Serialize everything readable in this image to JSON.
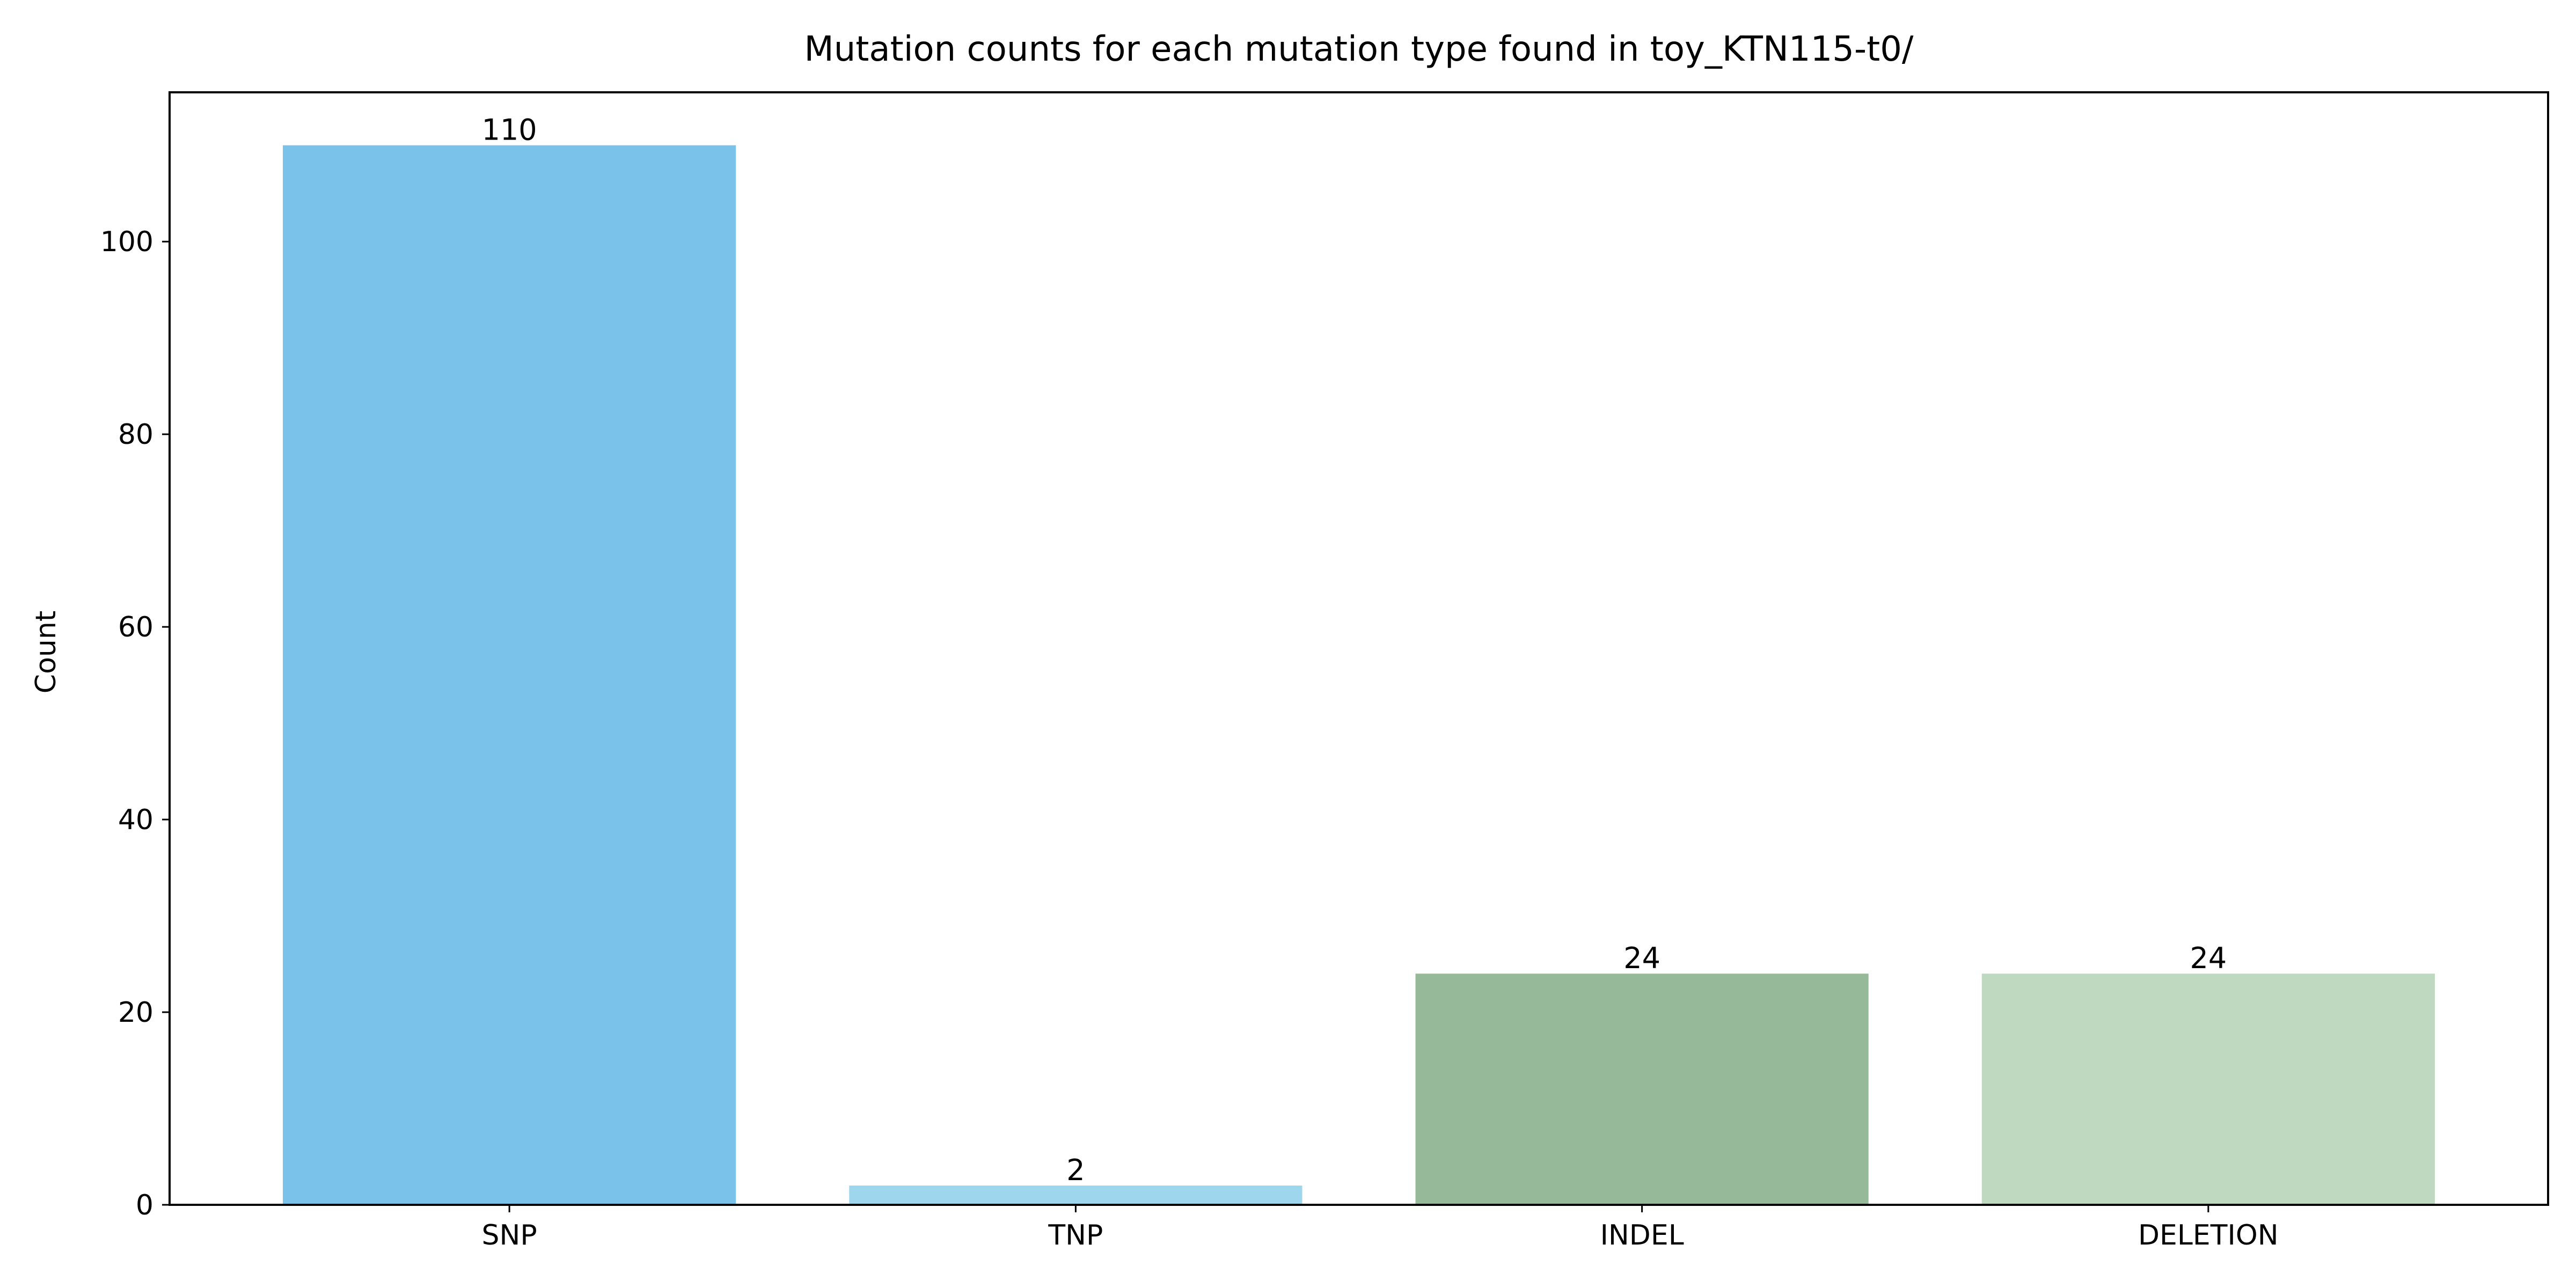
{
  "chart_data": {
    "type": "bar",
    "title": "Mutation counts for each mutation type found in toy_KTN115-t0/",
    "xlabel": "",
    "ylabel": "Count",
    "categories": [
      "SNP",
      "TNP",
      "INDEL",
      "DELETION"
    ],
    "values": [
      110,
      2,
      24,
      24
    ],
    "bar_labels": [
      "110",
      "2",
      "24",
      "24"
    ],
    "bar_colors": [
      "#7ac2ea",
      "#9ed6ee",
      "#96b99a",
      "#bed9bf"
    ],
    "ylim": [
      0,
      115.5
    ],
    "yticks": [
      0,
      20,
      40,
      60,
      80,
      100
    ],
    "ytick_labels": [
      "0",
      "20",
      "40",
      "60",
      "80",
      "100"
    ],
    "grid": false,
    "legend": "none"
  }
}
